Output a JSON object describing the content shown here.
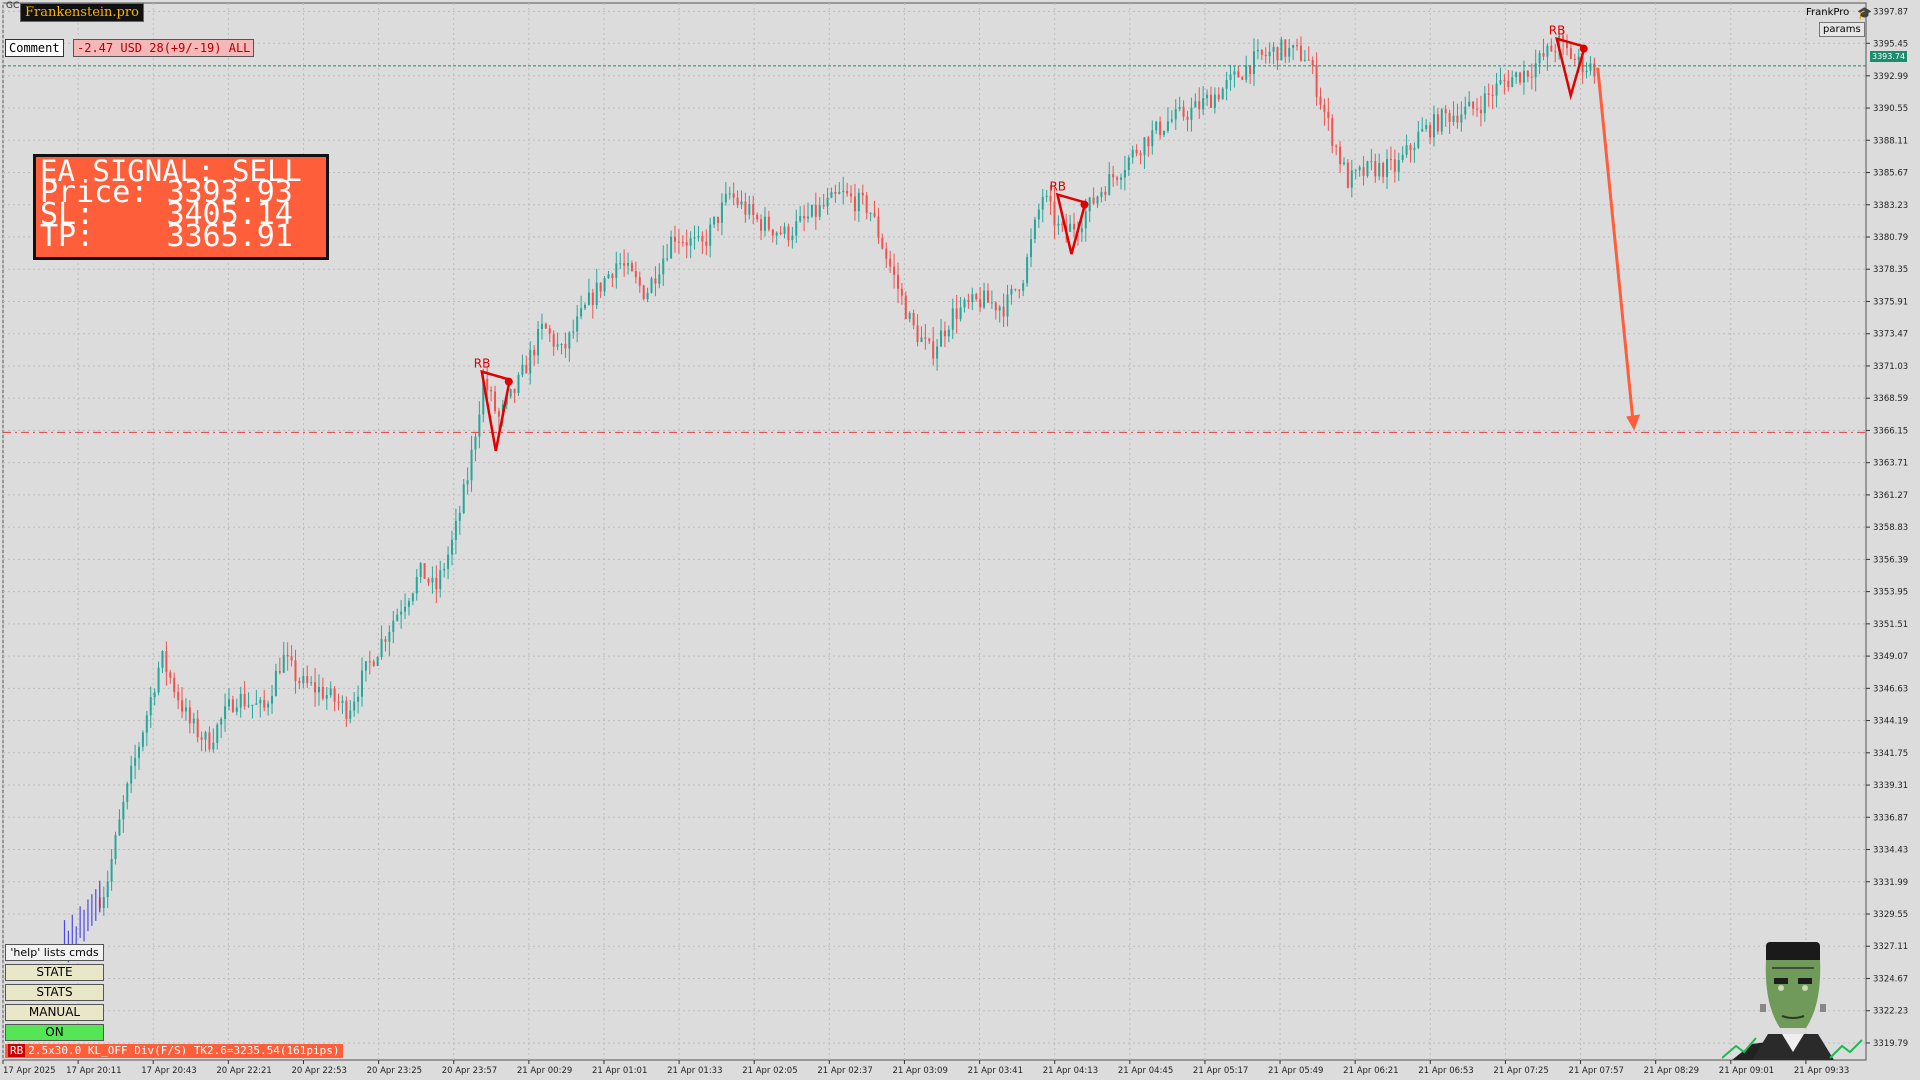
{
  "brand": {
    "name": "Frankenstein.pro",
    "symbol_label": "GC"
  },
  "toolbar": {
    "comment_label": "Comment",
    "comment_value": "-2.47 USD 28(+9/-19) ALL"
  },
  "signal": {
    "title": "EA SIGNAL: SELL",
    "price_label": "Price:",
    "price": "3393.93",
    "sl_label": "SL:",
    "sl": "3405.14",
    "tp_label": "TP:",
    "tp": "3365.91"
  },
  "top_right": {
    "frankpro": "FrankPro",
    "icon_name": "graduation-cap-icon",
    "params": "params"
  },
  "panel": {
    "help": "'help' lists cmds",
    "state": "STATE",
    "stats": "STATS",
    "manual": "MANUAL",
    "on": "ON"
  },
  "status_bar": {
    "badge": "RB",
    "text": "2.5x30.0 KL_OFF Div(F/S) TK2.6=3235.54(161pips)"
  },
  "current_price": "3393.74",
  "colors": {
    "background": "#dcdcdc",
    "bull": "#26a69a",
    "bear": "#ef5350",
    "signal": "#ff5e3b",
    "pattern": "#e00000",
    "tp_line": "#e04040",
    "current_price_line": "#1c8c6c",
    "down_candle_extra": "#4a4ae8"
  },
  "chart_data": {
    "type": "candlestick",
    "y_ticks": [
      "3397.87",
      "3395.45",
      "3392.99",
      "3390.55",
      "3388.11",
      "3385.67",
      "3383.23",
      "3380.79",
      "3378.35",
      "3375.91",
      "3373.47",
      "3371.03",
      "3368.59",
      "3366.15",
      "3363.71",
      "3361.27",
      "3358.83",
      "3356.39",
      "3353.95",
      "3351.51",
      "3349.07",
      "3346.63",
      "3344.19",
      "3341.75",
      "3339.31",
      "3336.87",
      "3334.43",
      "3331.99",
      "3329.55",
      "3327.11",
      "3324.67",
      "3322.23",
      "3319.79"
    ],
    "x_ticks": [
      "17 Apr 2025",
      "17 Apr 20:11",
      "17 Apr 20:43",
      "20 Apr 22:21",
      "20 Apr 22:53",
      "20 Apr 23:25",
      "20 Apr 23:57",
      "21 Apr 00:29",
      "21 Apr 01:01",
      "21 Apr 01:33",
      "21 Apr 02:05",
      "21 Apr 02:37",
      "21 Apr 03:09",
      "21 Apr 03:41",
      "21 Apr 04:13",
      "21 Apr 04:45",
      "21 Apr 05:17",
      "21 Apr 05:49",
      "21 Apr 06:21",
      "21 Apr 06:53",
      "21 Apr 07:25",
      "21 Apr 07:57",
      "21 Apr 08:29",
      "21 Apr 09:01",
      "21 Apr 09:33"
    ],
    "ylim": [
      3318.5,
      3398.5
    ],
    "grid": true,
    "price_path": [
      [
        0.0,
        3322.0
      ],
      [
        0.01,
        3323.5
      ],
      [
        0.022,
        3326.5
      ],
      [
        0.034,
        3327.6
      ],
      [
        0.04,
        3328.0
      ],
      [
        0.055,
        3331.5
      ],
      [
        0.065,
        3338.0
      ],
      [
        0.085,
        3349.0
      ],
      [
        0.1,
        3344.0
      ],
      [
        0.11,
        3342.5
      ],
      [
        0.125,
        3346.0
      ],
      [
        0.14,
        3345.0
      ],
      [
        0.15,
        3349.0
      ],
      [
        0.16,
        3347.0
      ],
      [
        0.17,
        3346.5
      ],
      [
        0.185,
        3345.0
      ],
      [
        0.195,
        3348.0
      ],
      [
        0.21,
        3352.0
      ],
      [
        0.225,
        3355.5
      ],
      [
        0.232,
        3354.0
      ],
      [
        0.242,
        3358.0
      ],
      [
        0.25,
        3363.0
      ],
      [
        0.258,
        3370.0
      ],
      [
        0.266,
        3367.0
      ],
      [
        0.276,
        3369.5
      ],
      [
        0.29,
        3374.0
      ],
      [
        0.3,
        3372.0
      ],
      [
        0.315,
        3376.0
      ],
      [
        0.33,
        3379.0
      ],
      [
        0.345,
        3376.5
      ],
      [
        0.36,
        3381.0
      ],
      [
        0.375,
        3380.0
      ],
      [
        0.39,
        3384.0
      ],
      [
        0.405,
        3382.0
      ],
      [
        0.42,
        3381.0
      ],
      [
        0.435,
        3382.5
      ],
      [
        0.45,
        3384.0
      ],
      [
        0.465,
        3383.0
      ],
      [
        0.475,
        3379.0
      ],
      [
        0.488,
        3374.0
      ],
      [
        0.498,
        3372.0
      ],
      [
        0.51,
        3375.0
      ],
      [
        0.525,
        3376.0
      ],
      [
        0.538,
        3375.5
      ],
      [
        0.548,
        3378.0
      ],
      [
        0.558,
        3384.0
      ],
      [
        0.568,
        3381.0
      ],
      [
        0.578,
        3382.0
      ],
      [
        0.59,
        3384.5
      ],
      [
        0.6,
        3386.0
      ],
      [
        0.612,
        3388.0
      ],
      [
        0.625,
        3389.5
      ],
      [
        0.64,
        3390.5
      ],
      [
        0.655,
        3392.0
      ],
      [
        0.67,
        3394.0
      ],
      [
        0.685,
        3395.0
      ],
      [
        0.7,
        3394.5
      ],
      [
        0.712,
        3389.0
      ],
      [
        0.722,
        3385.0
      ],
      [
        0.735,
        3386.0
      ],
      [
        0.748,
        3386.0
      ],
      [
        0.76,
        3388.5
      ],
      [
        0.775,
        3390.0
      ],
      [
        0.79,
        3390.5
      ],
      [
        0.805,
        3392.5
      ],
      [
        0.82,
        3393.5
      ],
      [
        0.835,
        3395.5
      ],
      [
        0.845,
        3394.0
      ],
      [
        0.855,
        3393.5
      ]
    ],
    "wedges": [
      {
        "label": "RB",
        "x": 0.257,
        "y_top": 3370.6,
        "y_bot": 3364.6
      },
      {
        "label": "RB",
        "x": 0.566,
        "y_top": 3384.0,
        "y_bot": 3379.5
      },
      {
        "label": "RB",
        "x": 0.834,
        "y_top": 3395.8,
        "y_bot": 3391.5
      }
    ],
    "signal_arrow": {
      "from": [
        0.856,
        3393.6
      ],
      "to": [
        0.875,
        3366.3
      ]
    },
    "tp_line": 3366.0,
    "current_price_line": 3393.74
  }
}
